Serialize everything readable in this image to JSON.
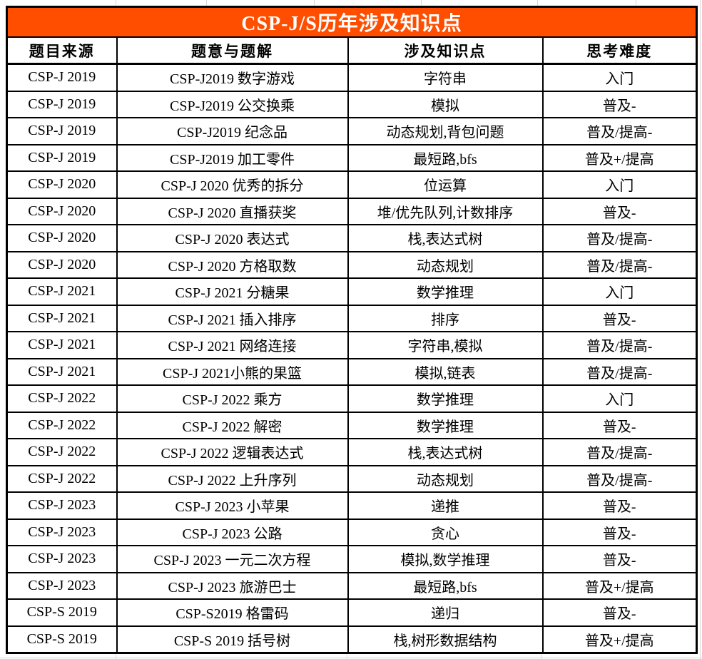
{
  "title": "CSP-J/S历年涉及知识点",
  "colors": {
    "title_bg": "#FF4E00",
    "title_text": "#FFFFFF",
    "border": "#000000",
    "gridline": "#D9D9D9"
  },
  "table": {
    "columns": [
      {
        "key": "source",
        "label": "题目来源"
      },
      {
        "key": "problem",
        "label": "题意与题解"
      },
      {
        "key": "knowledge",
        "label": "涉及知识点"
      },
      {
        "key": "difficulty",
        "label": "思考难度"
      }
    ],
    "rows": [
      {
        "source": "CSP-J 2019",
        "problem": "CSP-J2019 数字游戏",
        "knowledge": "字符串",
        "difficulty": "入门"
      },
      {
        "source": "CSP-J 2019",
        "problem": "CSP-J2019 公交换乘",
        "knowledge": "模拟",
        "difficulty": "普及-"
      },
      {
        "source": "CSP-J 2019",
        "problem": "CSP-J2019 纪念品",
        "knowledge": "动态规划,背包问题",
        "difficulty": "普及/提高-"
      },
      {
        "source": "CSP-J 2019",
        "problem": "CSP-J2019 加工零件",
        "knowledge": "最短路,bfs",
        "difficulty": "普及+/提高"
      },
      {
        "source": "CSP-J 2020",
        "problem": "CSP-J 2020 优秀的拆分",
        "knowledge": "位运算",
        "difficulty": "入门"
      },
      {
        "source": "CSP-J 2020",
        "problem": "CSP-J 2020 直播获奖",
        "knowledge": "堆/优先队列,计数排序",
        "difficulty": "普及-"
      },
      {
        "source": "CSP-J 2020",
        "problem": "CSP-J 2020 表达式",
        "knowledge": "栈,表达式树",
        "difficulty": "普及/提高-"
      },
      {
        "source": "CSP-J 2020",
        "problem": "CSP-J 2020 方格取数",
        "knowledge": "动态规划",
        "difficulty": "普及/提高-"
      },
      {
        "source": "CSP-J 2021",
        "problem": "CSP-J 2021 分糖果",
        "knowledge": "数学推理",
        "difficulty": "入门"
      },
      {
        "source": "CSP-J 2021",
        "problem": "CSP-J 2021 插入排序",
        "knowledge": "排序",
        "difficulty": "普及-"
      },
      {
        "source": "CSP-J 2021",
        "problem": "CSP-J 2021 网络连接",
        "knowledge": "字符串,模拟",
        "difficulty": "普及/提高-"
      },
      {
        "source": "CSP-J 2021",
        "problem": "CSP-J 2021小熊的果篮",
        "knowledge": "模拟,链表",
        "difficulty": "普及/提高-"
      },
      {
        "source": "CSP-J 2022",
        "problem": "CSP-J 2022 乘方",
        "knowledge": "数学推理",
        "difficulty": "入门"
      },
      {
        "source": "CSP-J 2022",
        "problem": "CSP-J 2022 解密",
        "knowledge": "数学推理",
        "difficulty": "普及-"
      },
      {
        "source": "CSP-J 2022",
        "problem": "CSP-J 2022 逻辑表达式",
        "knowledge": "栈,表达式树",
        "difficulty": "普及/提高-"
      },
      {
        "source": "CSP-J 2022",
        "problem": "CSP-J 2022 上升序列",
        "knowledge": "动态规划",
        "difficulty": "普及/提高-"
      },
      {
        "source": "CSP-J 2023",
        "problem": "CSP-J 2023 小苹果",
        "knowledge": "递推",
        "difficulty": "普及-"
      },
      {
        "source": "CSP-J 2023",
        "problem": "CSP-J 2023 公路",
        "knowledge": "贪心",
        "difficulty": "普及-"
      },
      {
        "source": "CSP-J 2023",
        "problem": "CSP-J 2023 一元二次方程",
        "knowledge": "模拟,数学推理",
        "difficulty": "普及-"
      },
      {
        "source": "CSP-J 2023",
        "problem": "CSP-J 2023 旅游巴士",
        "knowledge": "最短路,bfs",
        "difficulty": "普及+/提高"
      },
      {
        "source": "CSP-S 2019",
        "problem": "CSP-S2019 格雷码",
        "knowledge": "递归",
        "difficulty": "普及-"
      },
      {
        "source": "CSP-S 2019",
        "problem": "CSP-S 2019 括号树",
        "knowledge": "栈,树形数据结构",
        "difficulty": "普及+/提高"
      }
    ]
  }
}
